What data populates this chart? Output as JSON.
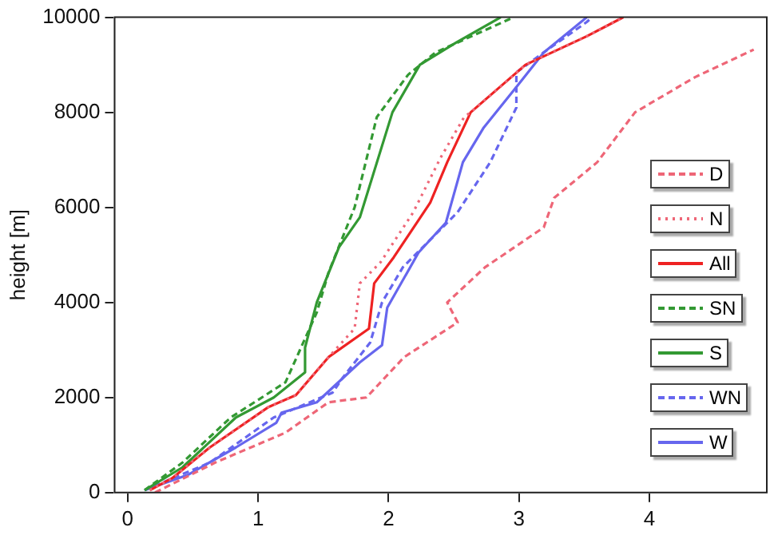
{
  "chart_data": {
    "type": "line",
    "ylabel": "height [m]",
    "xlim": [
      -0.1,
      4.9
    ],
    "xticks": [
      0,
      1,
      2,
      3,
      4
    ],
    "ylim": [
      0,
      10000
    ],
    "yticks": [
      0,
      2000,
      4000,
      6000,
      8000,
      10000
    ],
    "grid": false,
    "legend": "right",
    "marker": "none",
    "series": [
      {
        "name": "D",
        "color": "#ee6677",
        "line_style": "dashed",
        "x": [
          0.21,
          0.67,
          1.21,
          1.54,
          1.83,
          2.12,
          2.53,
          2.45,
          2.74,
          3.19,
          3.27,
          3.6,
          3.89,
          4.35,
          4.8
        ],
        "values": [
          0,
          630,
          1260,
          1900,
          2000,
          2850,
          3580,
          4000,
          4740,
          5580,
          6200,
          6950,
          8000,
          8740,
          9320
        ]
      },
      {
        "name": "N",
        "color": "#ee6677",
        "line_style": "dotted",
        "x": [
          0.17,
          0.34,
          0.63,
          1.08,
          1.29,
          1.54,
          1.74,
          1.78,
          1.94,
          2.19,
          2.4,
          2.58,
          2.63,
          3.05,
          3.52,
          3.8
        ],
        "values": [
          50,
          300,
          950,
          1800,
          2050,
          2850,
          3450,
          4400,
          4850,
          5900,
          7050,
          7900,
          8000,
          9000,
          9600,
          10000
        ]
      },
      {
        "name": "All",
        "color": "#ee2222",
        "line_style": "solid",
        "x": [
          0.17,
          0.34,
          0.63,
          1.08,
          1.29,
          1.54,
          1.85,
          1.89,
          2.04,
          2.32,
          2.45,
          2.63,
          3.05,
          3.52,
          3.8
        ],
        "values": [
          50,
          300,
          950,
          1800,
          2050,
          2850,
          3450,
          4400,
          4950,
          6100,
          6950,
          8000,
          9000,
          9600,
          10000
        ]
      },
      {
        "name": "SN",
        "color": "#339933",
        "line_style": "dashed",
        "x": [
          0.13,
          0.42,
          0.79,
          1.21,
          1.45,
          1.54,
          1.74,
          1.91,
          2.15,
          2.36,
          2.96
        ],
        "values": [
          50,
          630,
          1580,
          2320,
          3790,
          4630,
          6000,
          7900,
          8790,
          9260,
          10000
        ]
      },
      {
        "name": "S",
        "color": "#339933",
        "line_style": "solid",
        "x": [
          0.13,
          0.42,
          0.83,
          1.12,
          1.36,
          1.36,
          1.45,
          1.62,
          1.78,
          2.03,
          2.24,
          2.52,
          2.86
        ],
        "values": [
          50,
          530,
          1580,
          2000,
          2530,
          3050,
          4000,
          5160,
          5790,
          8000,
          9000,
          9470,
          10000
        ]
      },
      {
        "name": "WN",
        "color": "#6666ee",
        "line_style": "dashed",
        "x": [
          0.13,
          0.63,
          1.12,
          1.57,
          1.65,
          1.86,
          1.95,
          2.11,
          2.53,
          2.78,
          2.98,
          2.98,
          3.19,
          3.52,
          3.56
        ],
        "values": [
          50,
          630,
          1580,
          2100,
          2420,
          3160,
          4000,
          4740,
          5900,
          6950,
          8100,
          8840,
          9260,
          9900,
          10000
        ]
      },
      {
        "name": "W",
        "color": "#6666ee",
        "line_style": "solid",
        "x": [
          0.13,
          0.46,
          0.83,
          1.14,
          1.18,
          1.45,
          1.78,
          1.95,
          1.99,
          2.23,
          2.44,
          2.57,
          2.73,
          2.98,
          3.19,
          3.52
        ],
        "values": [
          50,
          370,
          950,
          1470,
          1680,
          1900,
          2740,
          3100,
          3890,
          5050,
          5680,
          6950,
          7680,
          8530,
          9260,
          10000
        ]
      }
    ]
  }
}
